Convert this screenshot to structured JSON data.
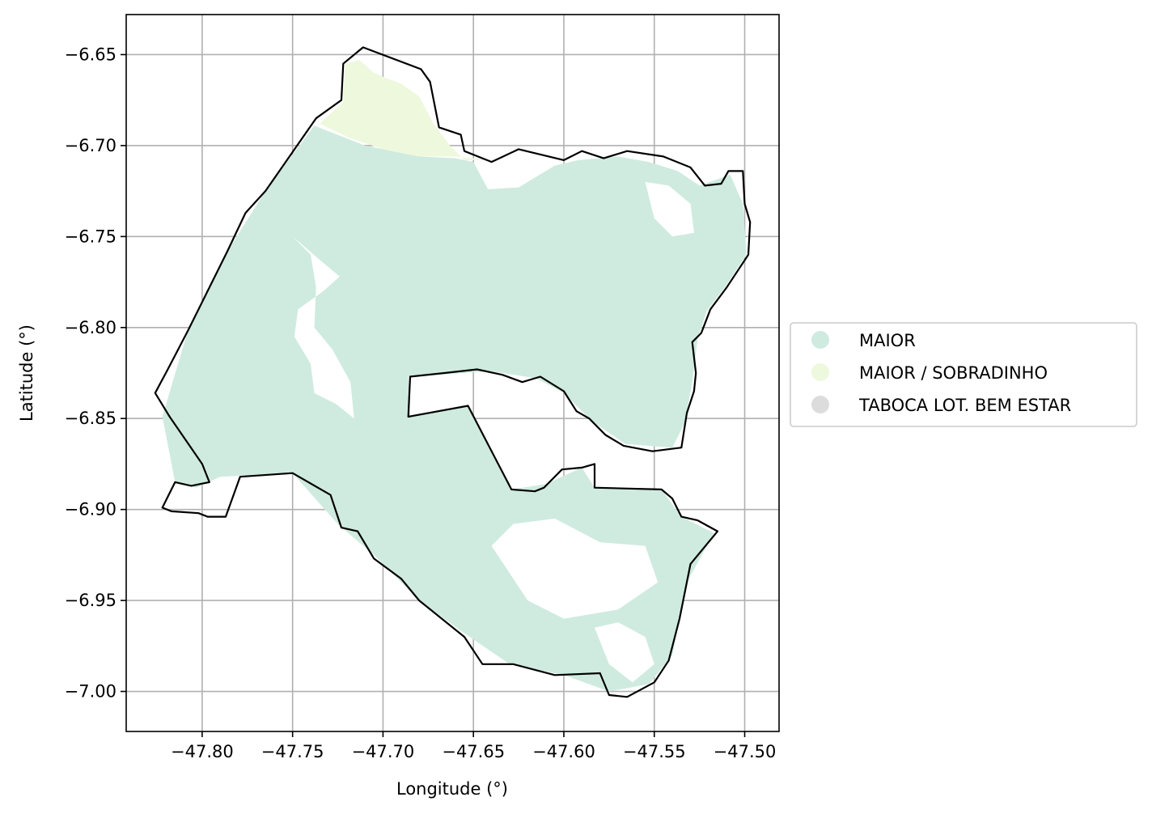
{
  "chart_data": {
    "type": "map",
    "title": "",
    "xlabel": "Longitude (°)",
    "ylabel": "Latitude (°)",
    "xlim": [
      -47.842,
      -47.481
    ],
    "ylim": [
      -7.022,
      -6.628
    ],
    "xticks": [
      -47.8,
      -47.75,
      -47.7,
      -47.65,
      -47.6,
      -47.55,
      -47.5
    ],
    "xtick_labels": [
      "−47.80",
      "−47.75",
      "−47.70",
      "−47.65",
      "−47.60",
      "−47.55",
      "−47.50"
    ],
    "yticks": [
      -6.65,
      -6.7,
      -6.75,
      -6.8,
      -6.85,
      -6.9,
      -6.95,
      -7.0
    ],
    "ytick_labels": [
      "−6.65",
      "−6.70",
      "−6.75",
      "−6.80",
      "−6.85",
      "−6.90",
      "−6.95",
      "−7.00"
    ],
    "grid": true,
    "legend_position": "right",
    "categories": [
      {
        "name": "MAIOR",
        "color": "#cfebdf"
      },
      {
        "name": "MAIOR / SOBRADINHO",
        "color": "#eef8dd"
      },
      {
        "name": "TABOCA LOT. BEM ESTAR",
        "color": "#dcdcdc"
      }
    ],
    "boundary": [
      [
        -47.711,
        -6.646
      ],
      [
        -47.679,
        -6.658
      ],
      [
        -47.674,
        -6.665
      ],
      [
        -47.669,
        -6.69
      ],
      [
        -47.657,
        -6.694
      ],
      [
        -47.655,
        -6.703
      ],
      [
        -47.64,
        -6.709
      ],
      [
        -47.625,
        -6.702
      ],
      [
        -47.6,
        -6.708
      ],
      [
        -47.59,
        -6.703
      ],
      [
        -47.578,
        -6.707
      ],
      [
        -47.565,
        -6.703
      ],
      [
        -47.545,
        -6.706
      ],
      [
        -47.53,
        -6.712
      ],
      [
        -47.522,
        -6.722
      ],
      [
        -47.513,
        -6.721
      ],
      [
        -47.509,
        -6.714
      ],
      [
        -47.501,
        -6.714
      ],
      [
        -47.5,
        -6.732
      ],
      [
        -47.497,
        -6.742
      ],
      [
        -47.498,
        -6.76
      ],
      [
        -47.51,
        -6.778
      ],
      [
        -47.519,
        -6.79
      ],
      [
        -47.524,
        -6.803
      ],
      [
        -47.529,
        -6.808
      ],
      [
        -47.527,
        -6.825
      ],
      [
        -47.528,
        -6.835
      ],
      [
        -47.532,
        -6.847
      ],
      [
        -47.535,
        -6.866
      ],
      [
        -47.551,
        -6.868
      ],
      [
        -47.567,
        -6.865
      ],
      [
        -47.577,
        -6.859
      ],
      [
        -47.586,
        -6.85
      ],
      [
        -47.593,
        -6.846
      ],
      [
        -47.6,
        -6.835
      ],
      [
        -47.613,
        -6.827
      ],
      [
        -47.623,
        -6.83
      ],
      [
        -47.634,
        -6.826
      ],
      [
        -47.648,
        -6.823
      ],
      [
        -47.666,
        -6.825
      ],
      [
        -47.685,
        -6.827
      ],
      [
        -47.686,
        -6.849
      ],
      [
        -47.653,
        -6.843
      ],
      [
        -47.629,
        -6.889
      ],
      [
        -47.616,
        -6.89
      ],
      [
        -47.611,
        -6.888
      ],
      [
        -47.606,
        -6.883
      ],
      [
        -47.601,
        -6.878
      ],
      [
        -47.59,
        -6.877
      ],
      [
        -47.583,
        -6.875
      ],
      [
        -47.583,
        -6.888
      ],
      [
        -47.546,
        -6.889
      ],
      [
        -47.54,
        -6.894
      ],
      [
        -47.535,
        -6.904
      ],
      [
        -47.526,
        -6.906
      ],
      [
        -47.515,
        -6.912
      ],
      [
        -47.53,
        -6.93
      ],
      [
        -47.536,
        -6.96
      ],
      [
        -47.542,
        -6.983
      ],
      [
        -47.55,
        -6.995
      ],
      [
        -47.565,
        -7.003
      ],
      [
        -47.575,
        -7.002
      ],
      [
        -47.58,
        -6.99
      ],
      [
        -47.605,
        -6.991
      ],
      [
        -47.628,
        -6.985
      ],
      [
        -47.645,
        -6.985
      ],
      [
        -47.655,
        -6.97
      ],
      [
        -47.68,
        -6.95
      ],
      [
        -47.69,
        -6.938
      ],
      [
        -47.705,
        -6.927
      ],
      [
        -47.714,
        -6.912
      ],
      [
        -47.723,
        -6.91
      ],
      [
        -47.729,
        -6.892
      ],
      [
        -47.75,
        -6.88
      ],
      [
        -47.779,
        -6.882
      ],
      [
        -47.787,
        -6.904
      ],
      [
        -47.797,
        -6.904
      ],
      [
        -47.802,
        -6.902
      ],
      [
        -47.817,
        -6.901
      ],
      [
        -47.822,
        -6.899
      ],
      [
        -47.815,
        -6.885
      ],
      [
        -47.806,
        -6.887
      ],
      [
        -47.796,
        -6.885
      ],
      [
        -47.8,
        -6.875
      ],
      [
        -47.818,
        -6.849
      ],
      [
        -47.826,
        -6.836
      ],
      [
        -47.819,
        -6.823
      ],
      [
        -47.808,
        -6.802
      ],
      [
        -47.797,
        -6.78
      ],
      [
        -47.786,
        -6.758
      ],
      [
        -47.776,
        -6.737
      ],
      [
        -47.765,
        -6.725
      ],
      [
        -47.737,
        -6.685
      ],
      [
        -47.723,
        -6.675
      ],
      [
        -47.722,
        -6.655
      ],
      [
        -47.711,
        -6.646
      ]
    ],
    "regions": [
      {
        "category": "MAIOR",
        "polygon": [
          [
            -47.738,
            -6.689
          ],
          [
            -47.71,
            -6.7
          ],
          [
            -47.68,
            -6.706
          ],
          [
            -47.66,
            -6.707
          ],
          [
            -47.65,
            -6.709
          ],
          [
            -47.642,
            -6.724
          ],
          [
            -47.625,
            -6.723
          ],
          [
            -47.605,
            -6.711
          ],
          [
            -47.592,
            -6.708
          ],
          [
            -47.57,
            -6.706
          ],
          [
            -47.553,
            -6.709
          ],
          [
            -47.537,
            -6.714
          ],
          [
            -47.525,
            -6.722
          ],
          [
            -47.508,
            -6.716
          ],
          [
            -47.501,
            -6.732
          ],
          [
            -47.499,
            -6.76
          ],
          [
            -47.511,
            -6.778
          ],
          [
            -47.521,
            -6.791
          ],
          [
            -47.526,
            -6.806
          ],
          [
            -47.529,
            -6.83
          ],
          [
            -47.533,
            -6.852
          ],
          [
            -47.54,
            -6.866
          ],
          [
            -47.566,
            -6.864
          ],
          [
            -47.585,
            -6.851
          ],
          [
            -47.6,
            -6.836
          ],
          [
            -47.615,
            -6.828
          ],
          [
            -47.64,
            -6.824
          ],
          [
            -47.686,
            -6.827
          ],
          [
            -47.685,
            -6.849
          ],
          [
            -47.653,
            -6.843
          ],
          [
            -47.629,
            -6.889
          ],
          [
            -47.61,
            -6.886
          ],
          [
            -47.59,
            -6.877
          ],
          [
            -47.583,
            -6.888
          ],
          [
            -47.546,
            -6.889
          ],
          [
            -47.535,
            -6.904
          ],
          [
            -47.517,
            -6.913
          ],
          [
            -47.532,
            -6.94
          ],
          [
            -47.54,
            -6.98
          ],
          [
            -47.553,
            -6.996
          ],
          [
            -47.575,
            -7.0
          ],
          [
            -47.6,
            -6.991
          ],
          [
            -47.63,
            -6.985
          ],
          [
            -47.655,
            -6.968
          ],
          [
            -47.68,
            -6.95
          ],
          [
            -47.705,
            -6.925
          ],
          [
            -47.725,
            -6.908
          ],
          [
            -47.75,
            -6.88
          ],
          [
            -47.79,
            -6.882
          ],
          [
            -47.803,
            -6.888
          ],
          [
            -47.815,
            -6.885
          ],
          [
            -47.822,
            -6.849
          ],
          [
            -47.808,
            -6.802
          ],
          [
            -47.786,
            -6.758
          ],
          [
            -47.765,
            -6.725
          ]
        ]
      },
      {
        "category": "MAIOR / SOBRADINHO",
        "polygon": [
          [
            -47.721,
            -6.655
          ],
          [
            -47.713,
            -6.653
          ],
          [
            -47.705,
            -6.66
          ],
          [
            -47.698,
            -6.663
          ],
          [
            -47.69,
            -6.666
          ],
          [
            -47.68,
            -6.673
          ],
          [
            -47.672,
            -6.688
          ],
          [
            -47.663,
            -6.7
          ],
          [
            -47.655,
            -6.708
          ],
          [
            -47.64,
            -6.708
          ],
          [
            -47.66,
            -6.706
          ],
          [
            -47.68,
            -6.706
          ],
          [
            -47.7,
            -6.702
          ],
          [
            -47.718,
            -6.696
          ],
          [
            -47.735,
            -6.688
          ],
          [
            -47.722,
            -6.676
          ]
        ]
      }
    ],
    "holes": [
      [
        [
          -47.75,
          -6.75
        ],
        [
          -47.74,
          -6.76
        ],
        [
          -47.737,
          -6.778
        ],
        [
          -47.738,
          -6.8
        ],
        [
          -47.728,
          -6.812
        ],
        [
          -47.718,
          -6.83
        ],
        [
          -47.716,
          -6.85
        ],
        [
          -47.726,
          -6.842
        ],
        [
          -47.738,
          -6.836
        ],
        [
          -47.74,
          -6.82
        ],
        [
          -47.749,
          -6.805
        ],
        [
          -47.747,
          -6.79
        ],
        [
          -47.733,
          -6.78
        ],
        [
          -47.724,
          -6.772
        ],
        [
          -47.736,
          -6.762
        ]
      ],
      [
        [
          -47.64,
          -6.92
        ],
        [
          -47.62,
          -6.95
        ],
        [
          -47.6,
          -6.96
        ],
        [
          -47.57,
          -6.955
        ],
        [
          -47.548,
          -6.94
        ],
        [
          -47.555,
          -6.92
        ],
        [
          -47.58,
          -6.918
        ],
        [
          -47.605,
          -6.905
        ],
        [
          -47.628,
          -6.908
        ]
      ],
      [
        [
          -47.583,
          -6.965
        ],
        [
          -47.575,
          -6.985
        ],
        [
          -47.562,
          -6.995
        ],
        [
          -47.55,
          -6.985
        ],
        [
          -47.555,
          -6.97
        ],
        [
          -47.57,
          -6.962
        ]
      ],
      [
        [
          -47.555,
          -6.72
        ],
        [
          -47.55,
          -6.74
        ],
        [
          -47.54,
          -6.75
        ],
        [
          -47.528,
          -6.748
        ],
        [
          -47.53,
          -6.732
        ],
        [
          -47.542,
          -6.722
        ]
      ]
    ],
    "legend": [
      "MAIOR",
      "MAIOR / SOBRADINHO",
      "TABOCA LOT. BEM ESTAR"
    ]
  }
}
